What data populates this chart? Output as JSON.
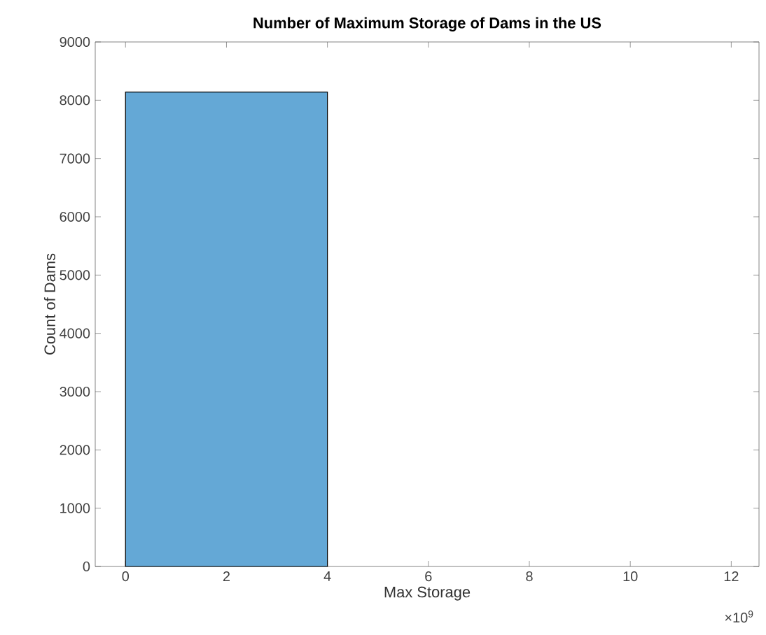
{
  "chart_data": {
    "type": "histogram",
    "title": "Number of Maximum Storage of Dams in the US",
    "xlabel": "Max Storage",
    "ylabel": "Count of Dams",
    "bins": [
      0,
      4
    ],
    "values": [
      8140
    ],
    "color": "#64a8d6",
    "xlim": [
      -0.6,
      12.55
    ],
    "xticks": [
      0,
      2,
      4,
      6,
      8,
      10,
      12
    ],
    "ylim": [
      0,
      9000
    ],
    "yticks": [
      0,
      1000,
      2000,
      3000,
      4000,
      5000,
      6000,
      7000,
      8000,
      9000
    ],
    "annotations": [
      "×10$^{9}$"
    ],
    "grid": false
  }
}
